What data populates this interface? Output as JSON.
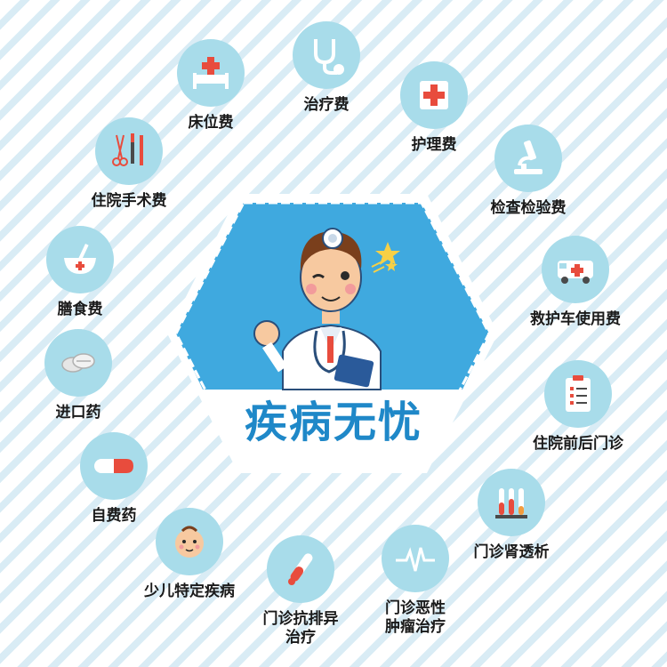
{
  "center": {
    "title": "疾病无忧"
  },
  "items": [
    {
      "label": "床位费",
      "icon": "hospital-bed-icon"
    },
    {
      "label": "治疗费",
      "icon": "stethoscope-icon"
    },
    {
      "label": "护理费",
      "icon": "first-aid-cross-icon"
    },
    {
      "label": "检查检验费",
      "icon": "microscope-icon"
    },
    {
      "label": "救护车使用费",
      "icon": "ambulance-icon"
    },
    {
      "label": "住院前后门诊",
      "icon": "clipboard-checklist-icon"
    },
    {
      "label": "门诊肾透析",
      "icon": "test-tubes-icon"
    },
    {
      "label": "门诊恶性",
      "label2": "肿瘤治疗",
      "icon": "ecg-pulse-icon"
    },
    {
      "label": "门诊抗排异",
      "label2": "治疗",
      "icon": "blood-test-tube-icon"
    },
    {
      "label": "少儿特定疾病",
      "icon": "baby-face-icon"
    },
    {
      "label": "自费药",
      "icon": "capsule-icon"
    },
    {
      "label": "进口药",
      "icon": "pills-icon"
    },
    {
      "label": "膳食费",
      "icon": "meal-bowl-icon"
    },
    {
      "label": "住院手术费",
      "icon": "surgical-tools-icon"
    }
  ],
  "colors": {
    "circle": "#a8dcea",
    "hexagon": "#3fa9df",
    "accent_red": "#e84c3d",
    "title_blue": "#1f88c8"
  }
}
